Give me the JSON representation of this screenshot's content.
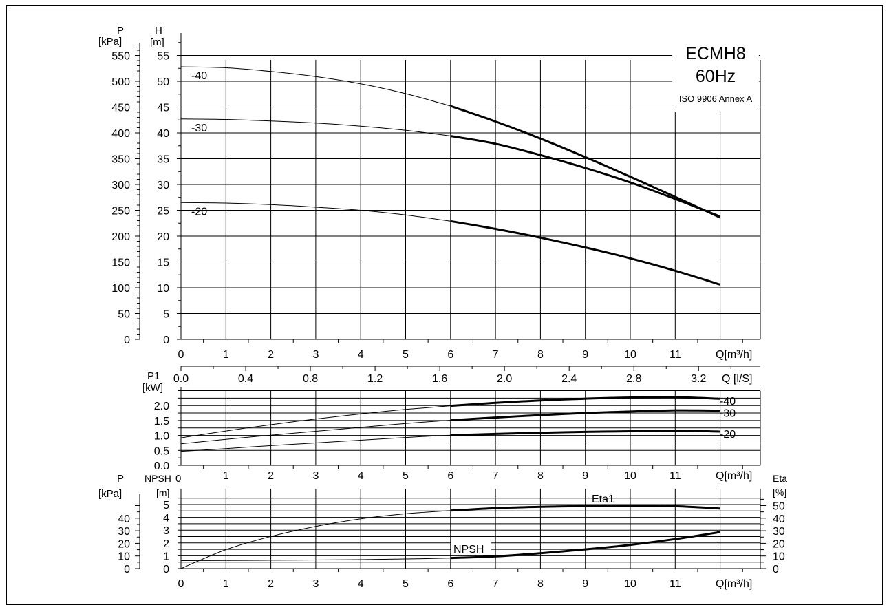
{
  "title_box": {
    "model": "ECMH8",
    "frequency": "60Hz",
    "standard": "ISO 9906 Annex A"
  },
  "chart_data": [
    {
      "id": "head",
      "type": "line",
      "title": "ECMH8 60Hz",
      "xlabel": "Q[m³/h]",
      "ylabel": "H [m]",
      "ylabel_secondary": "P [kPa]",
      "xlim": [
        0,
        13
      ],
      "ylim": [
        0,
        55
      ],
      "ylim_secondary": [
        0,
        550
      ],
      "x_ticks": [
        0,
        1,
        2,
        3,
        4,
        5,
        6,
        7,
        8,
        9,
        10,
        11
      ],
      "y_ticks": [
        0,
        5,
        10,
        15,
        20,
        25,
        30,
        35,
        40,
        45,
        50,
        55
      ],
      "y2_ticks": [
        0,
        50,
        100,
        150,
        200,
        250,
        300,
        350,
        400,
        450,
        500,
        550
      ],
      "grid": true,
      "series": [
        {
          "name": "-40",
          "x": [
            0,
            1,
            2,
            3,
            4,
            5,
            6,
            7,
            8,
            9,
            10,
            11,
            12
          ],
          "y": [
            52.8,
            52.6,
            51.9,
            50.9,
            49.5,
            47.6,
            45.2,
            42.2,
            38.9,
            35.3,
            31.5,
            27.6,
            23.6
          ]
        },
        {
          "name": "-30",
          "x": [
            0,
            1,
            2,
            3,
            4,
            5,
            6,
            7,
            8,
            9,
            10,
            11,
            12
          ],
          "y": [
            42.7,
            42.6,
            42.3,
            41.9,
            41.3,
            40.5,
            39.4,
            37.9,
            35.7,
            33.2,
            30.4,
            27.2,
            23.8
          ]
        },
        {
          "name": "-20",
          "x": [
            0,
            1,
            2,
            3,
            4,
            5,
            6,
            7,
            8,
            9,
            10,
            11,
            12
          ],
          "y": [
            26.5,
            26.4,
            26.1,
            25.6,
            25.0,
            24.1,
            22.9,
            21.4,
            19.7,
            17.8,
            15.7,
            13.3,
            10.6
          ]
        }
      ],
      "secondary_x_axis": {
        "label": "Q [l/S]",
        "ticks": [
          "0.0",
          "0.4",
          "0.8",
          "1.2",
          "1.6",
          "2.0",
          "2.4",
          "2.8",
          "3.2"
        ]
      }
    },
    {
      "id": "power",
      "type": "line",
      "xlabel": "Q[m³/h]",
      "ylabel": "P1 [kW]",
      "xlim": [
        0,
        13
      ],
      "ylim": [
        0,
        2.5
      ],
      "x_ticks": [
        0,
        1,
        2,
        3,
        4,
        5,
        6,
        7,
        8,
        9,
        10,
        11
      ],
      "y_ticks": [
        "0.0",
        "0.5",
        "1.0",
        "1.5",
        "2.0"
      ],
      "grid": true,
      "series": [
        {
          "name": "-40",
          "x": [
            0,
            1,
            2,
            3,
            4,
            5,
            6,
            7,
            8,
            9,
            10,
            11,
            12
          ],
          "y": [
            0.92,
            1.15,
            1.36,
            1.55,
            1.72,
            1.87,
            1.99,
            2.09,
            2.17,
            2.23,
            2.27,
            2.28,
            2.23
          ]
        },
        {
          "name": "-30",
          "x": [
            0,
            1,
            2,
            3,
            4,
            5,
            6,
            7,
            8,
            9,
            10,
            11,
            12
          ],
          "y": [
            0.72,
            0.87,
            1.01,
            1.14,
            1.27,
            1.4,
            1.51,
            1.6,
            1.68,
            1.75,
            1.8,
            1.84,
            1.83
          ]
        },
        {
          "name": "-20",
          "x": [
            0,
            1,
            2,
            3,
            4,
            5,
            6,
            7,
            8,
            9,
            10,
            11,
            12
          ],
          "y": [
            0.47,
            0.56,
            0.66,
            0.75,
            0.84,
            0.93,
            1.01,
            1.05,
            1.09,
            1.12,
            1.14,
            1.16,
            1.13
          ]
        }
      ]
    },
    {
      "id": "npsh_eff",
      "type": "line",
      "xlabel": "Q[m³/h]",
      "ylabel": "NPSH [m]",
      "ylabel_secondary": "Eta [%]",
      "ylabel_pressure": "P [kPa]",
      "xlim": [
        0,
        13
      ],
      "ylim": [
        0,
        5.5
      ],
      "x_ticks": [
        0,
        1,
        2,
        3,
        4,
        5,
        6,
        7,
        8,
        9,
        10,
        11
      ],
      "y_ticks": [
        0,
        1,
        2,
        3,
        4,
        5
      ],
      "eta_ticks": [
        0,
        10,
        20,
        30,
        40,
        50
      ],
      "p_ticks": [
        0,
        10,
        20,
        30,
        40
      ],
      "grid": true,
      "series": [
        {
          "name": "Eta1",
          "axis": "eta",
          "x": [
            0,
            1,
            2,
            3,
            4,
            5,
            6,
            7,
            8,
            9,
            10,
            11,
            12
          ],
          "y": [
            0,
            15,
            25.5,
            33.5,
            39.5,
            43.5,
            46,
            48,
            49,
            49.6,
            49.8,
            49.5,
            47.7
          ]
        },
        {
          "name": "NPSH",
          "axis": "npsh",
          "x": [
            0,
            1,
            2,
            3,
            4,
            5,
            6,
            7,
            8,
            9,
            10,
            11,
            12
          ],
          "y": [
            0.62,
            0.63,
            0.65,
            0.67,
            0.7,
            0.75,
            0.82,
            0.95,
            1.2,
            1.5,
            1.85,
            2.3,
            2.85
          ]
        }
      ]
    }
  ],
  "labels": {
    "P": "P",
    "kPa": "[kPa]",
    "H": "H",
    "m": "[m]",
    "P1": "P1",
    "kW": "[kW]",
    "NPSH": "NPSH",
    "Eta": "Eta",
    "pct": "[%]",
    "q_m3h": "Q[m³/h]",
    "q_ls": "Q [l/S]",
    "npsh_series": "NPSH",
    "eta_series": "Eta1",
    "x0_lower": "0"
  }
}
